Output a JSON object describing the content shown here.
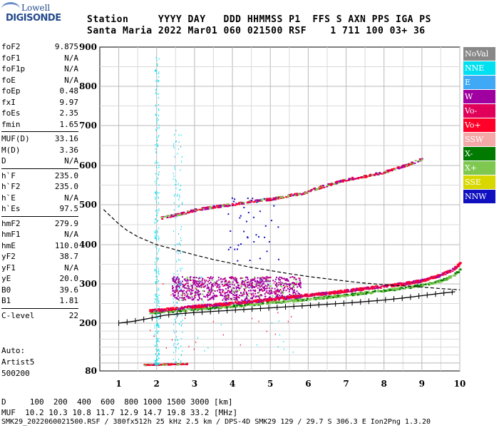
{
  "logo": {
    "line1": "Lowell",
    "line2": "DIGISONDE"
  },
  "header": {
    "row1": "Station     YYYY DAY   DDD HHMMSS P1  FFS S AXN PPS IGA PS",
    "row2": "Santa Maria 2022 Mar01 060 021500 RSF    1 711 100 03+ 36"
  },
  "params": [
    {
      "group": [
        {
          "name": "foF2",
          "value": "9.875"
        },
        {
          "name": "foF1",
          "value": "N/A"
        },
        {
          "name": "foF1p",
          "value": "N/A"
        },
        {
          "name": "foE",
          "value": "N/A"
        },
        {
          "name": "foEp",
          "value": "0.48"
        },
        {
          "name": "fxI",
          "value": "9.97"
        },
        {
          "name": "foEs",
          "value": "2.35"
        },
        {
          "name": "fmin",
          "value": "1.65"
        }
      ]
    },
    {
      "group": [
        {
          "name": "MUF(D)",
          "value": "33.16"
        },
        {
          "name": "M(D)",
          "value": "3.36"
        },
        {
          "name": "D",
          "value": "N/A"
        }
      ]
    },
    {
      "group": [
        {
          "name": "h`F",
          "value": "235.0"
        },
        {
          "name": "h`F2",
          "value": "235.0"
        },
        {
          "name": "h`E",
          "value": "N/A"
        },
        {
          "name": "h`Es",
          "value": "97.5"
        }
      ]
    },
    {
      "group": [
        {
          "name": "hmF2",
          "value": "279.9"
        },
        {
          "name": "hmF1",
          "value": "N/A"
        },
        {
          "name": "hmE",
          "value": "110.0"
        },
        {
          "name": "yF2",
          "value": "38.7"
        },
        {
          "name": "yF1",
          "value": "N/A"
        },
        {
          "name": "yE",
          "value": "20.0"
        },
        {
          "name": "B0",
          "value": "39.6"
        },
        {
          "name": "B1",
          "value": "1.81"
        }
      ]
    },
    {
      "group": [
        {
          "name": "C-level",
          "value": "22"
        }
      ]
    }
  ],
  "auto": {
    "line1": "Auto:",
    "line2": "Artist5",
    "line3": "500200"
  },
  "legend": [
    {
      "label": "NoVal",
      "color": "#888888",
      "text": "#ffffff"
    },
    {
      "label": "NNE",
      "color": "#00e0f0",
      "text": "#ffffff"
    },
    {
      "label": "E",
      "color": "#3fa9f5",
      "text": "#ffffff"
    },
    {
      "label": "W",
      "color": "#a000a0",
      "text": "#ffffff"
    },
    {
      "label": "Vo-",
      "color": "#e0005a",
      "text": "#ffffff"
    },
    {
      "label": "Vo+",
      "color": "#ff0028",
      "text": "#ffffff"
    },
    {
      "label": "SSW",
      "color": "#f4a8a8",
      "text": "#ffffff"
    },
    {
      "label": "X-",
      "color": "#007a00",
      "text": "#ffffff"
    },
    {
      "label": "X+",
      "color": "#7ec850",
      "text": "#ffffff"
    },
    {
      "label": "SSE",
      "color": "#d8d800",
      "text": "#ffffff"
    },
    {
      "label": "NNW",
      "color": "#1010c0",
      "text": "#ffffff"
    }
  ],
  "footer": {
    "line1": "D     100  200  400  600  800 1000 1500 3000 [km]",
    "line2": "MUF  10.2 10.3 10.8 11.7 12.9 14.7 19.8 33.2 [MHz]",
    "line3": "SMK29_2022060021500.RSF / 380fx512h 25 kHz 2.5 km / DPS-4D SMK29 129 / 29.7 S 306.3 E Ion2Png 1.3.20"
  },
  "chart_data": {
    "type": "scatter",
    "xlim": [
      0.5,
      10
    ],
    "ylim": [
      80,
      900
    ],
    "xticks": [
      "1",
      "2",
      "3",
      "4",
      "5",
      "6",
      "7",
      "8",
      "9",
      "10"
    ],
    "yticks": [
      "80",
      "200",
      "300",
      "400",
      "500",
      "600",
      "700",
      "800",
      "900"
    ],
    "grid": true,
    "traces": {
      "o_trace": {
        "x": [
          1.8,
          2.2,
          2.6,
          3,
          3.5,
          4,
          4.5,
          5,
          5.5,
          6,
          6.5,
          7,
          7.5,
          8,
          8.5,
          9,
          9.5,
          9.8,
          10
        ],
        "y": [
          233,
          236,
          240,
          244,
          248,
          252,
          257,
          262,
          268,
          273,
          278,
          284,
          290,
          296,
          302,
          310,
          325,
          338,
          355
        ]
      },
      "x_trace": {
        "x": [
          1.8,
          2.2,
          2.6,
          3,
          3.5,
          4,
          4.5,
          5,
          5.5,
          6,
          6.5,
          7,
          7.5,
          8,
          8.5,
          9,
          9.5,
          9.8,
          10
        ],
        "y": [
          228,
          231,
          234,
          237,
          241,
          245,
          249,
          254,
          258,
          263,
          268,
          273,
          279,
          285,
          291,
          298,
          310,
          322,
          338
        ]
      },
      "spread_f": {
        "x": [
          2.4,
          5.8
        ],
        "y": [
          260,
          320
        ]
      },
      "second_hop": {
        "x": [
          2.1,
          2.6,
          3,
          3.5,
          4,
          4.5,
          5,
          5.5,
          5.8,
          6.3,
          7,
          7.5,
          8,
          8.5,
          9
        ],
        "y": [
          468,
          478,
          488,
          496,
          502,
          510,
          516,
          525,
          530,
          546,
          566,
          574,
          585,
          600,
          618
        ]
      },
      "es_trace": {
        "x": [
          1.65,
          1.9,
          2.2,
          2.5,
          2.8
        ],
        "y": [
          97,
          97,
          98,
          98,
          99
        ]
      },
      "es_vertical": {
        "x": 2.0,
        "y": [
          97,
          880
        ]
      },
      "spread_vertical": {
        "x": 2.55,
        "y": [
          100,
          700
        ]
      }
    },
    "profile_curve": {
      "x": [
        1.0,
        1.4,
        1.8,
        2.2,
        2.6,
        3,
        3.5,
        4,
        4.5,
        5,
        5.5,
        6,
        6.5,
        7,
        7.5,
        8,
        8.5,
        9,
        9.5,
        9.875
      ],
      "y": [
        200,
        205,
        212,
        220,
        224,
        227,
        230,
        233,
        236,
        239,
        242,
        245,
        248,
        251,
        255,
        259,
        264,
        270,
        276,
        280
      ]
    },
    "muf_curve": {
      "x": [
        0.6,
        0.8,
        1,
        1.2,
        1.5,
        2,
        2.5,
        3,
        3.5,
        4,
        4.5,
        5,
        5.5,
        6,
        6.5,
        7,
        7.5,
        8,
        8.5,
        9,
        9.5,
        10
      ],
      "y": [
        488,
        470,
        452,
        437,
        420,
        400,
        387,
        374,
        362,
        352,
        342,
        334,
        326,
        319,
        313,
        307,
        302,
        298,
        295,
        292,
        288,
        285
      ]
    }
  }
}
